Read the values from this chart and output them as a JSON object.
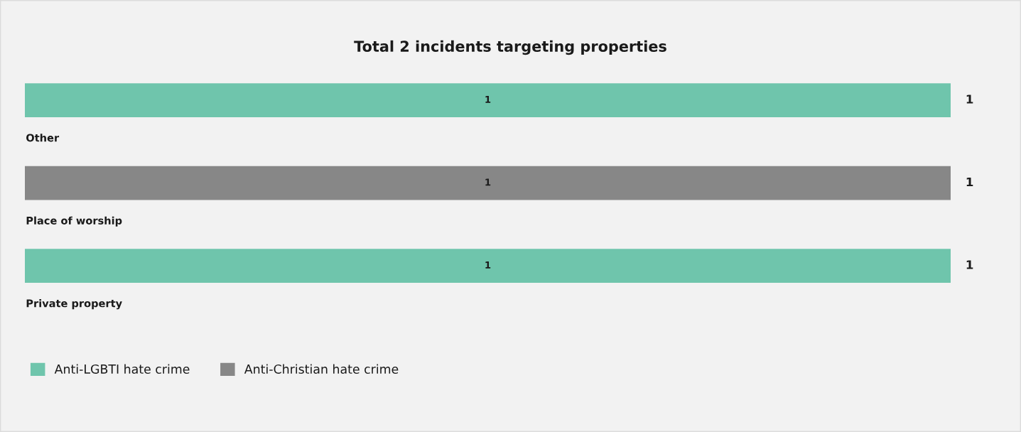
{
  "chart_data": {
    "type": "bar",
    "orientation": "horizontal",
    "stacked": true,
    "title": "Total 2 incidents targeting properties",
    "categories": [
      "Other",
      "Place of worship",
      "Private property"
    ],
    "series": [
      {
        "name": "Anti-LGBTI hate crime",
        "color": "#6fc5ac",
        "values": [
          1,
          null,
          1
        ]
      },
      {
        "name": "Anti-Christian hate crime",
        "color": "#878787",
        "values": [
          null,
          1,
          null
        ]
      }
    ],
    "data_labels": true,
    "totals": [
      "1",
      "1",
      "1"
    ],
    "legend": "bottom left"
  }
}
